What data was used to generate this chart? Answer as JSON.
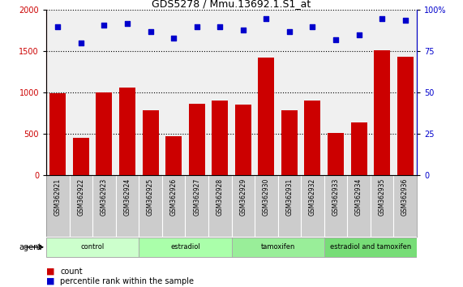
{
  "title": "GDS5278 / Mmu.13692.1.S1_at",
  "samples": [
    "GSM362921",
    "GSM362922",
    "GSM362923",
    "GSM362924",
    "GSM362925",
    "GSM362926",
    "GSM362927",
    "GSM362928",
    "GSM362929",
    "GSM362930",
    "GSM362931",
    "GSM362932",
    "GSM362933",
    "GSM362934",
    "GSM362935",
    "GSM362936"
  ],
  "counts": [
    990,
    450,
    1000,
    1060,
    790,
    470,
    860,
    900,
    850,
    1420,
    790,
    900,
    510,
    640,
    1510,
    1430
  ],
  "percentile": [
    90,
    80,
    91,
    92,
    87,
    83,
    90,
    90,
    88,
    95,
    87,
    90,
    82,
    85,
    95,
    94
  ],
  "groups": [
    {
      "label": "control",
      "start": 0,
      "end": 4,
      "color": "#ccffcc"
    },
    {
      "label": "estradiol",
      "start": 4,
      "end": 8,
      "color": "#aaffaa"
    },
    {
      "label": "tamoxifen",
      "start": 8,
      "end": 12,
      "color": "#99ee99"
    },
    {
      "label": "estradiol and tamoxifen",
      "start": 12,
      "end": 16,
      "color": "#77dd77"
    }
  ],
  "bar_color": "#cc0000",
  "dot_color": "#0000cc",
  "ylim_left": [
    0,
    2000
  ],
  "ylim_right": [
    0,
    100
  ],
  "yticks_left": [
    0,
    500,
    1000,
    1500,
    2000
  ],
  "yticks_right": [
    0,
    25,
    50,
    75,
    100
  ],
  "bg_main": "#f0f0f0",
  "bg_samples": "#cccccc",
  "agent_label": "agent"
}
